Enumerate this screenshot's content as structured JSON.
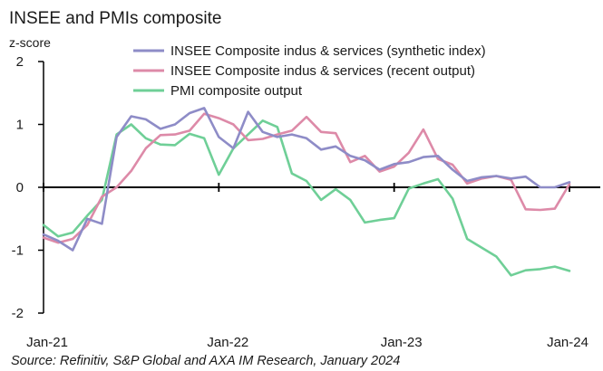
{
  "chart_data": {
    "type": "line",
    "title": "INSEE and PMIs composite",
    "ylabel": "z-score",
    "xlabel": "",
    "ylim": [
      -2,
      2
    ],
    "yticks": [
      2,
      1,
      0,
      -1,
      -2
    ],
    "xtick_labels": [
      "Jan-21",
      "Jan-22",
      "Jan-23",
      "Jan-24"
    ],
    "legend_position": "top-right",
    "source": "Source: Refinitiv, S&P Global and AXA IM Research, January 2024",
    "x": [
      "Jan-21",
      "Feb-21",
      "Mar-21",
      "Apr-21",
      "May-21",
      "Jun-21",
      "Jul-21",
      "Aug-21",
      "Sep-21",
      "Oct-21",
      "Nov-21",
      "Dec-21",
      "Jan-22",
      "Feb-22",
      "Mar-22",
      "Apr-22",
      "May-22",
      "Jun-22",
      "Jul-22",
      "Aug-22",
      "Sep-22",
      "Oct-22",
      "Nov-22",
      "Dec-22",
      "Jan-23",
      "Feb-23",
      "Mar-23",
      "Apr-23",
      "May-23",
      "Jun-23",
      "Jul-23",
      "Aug-23",
      "Sep-23",
      "Oct-23",
      "Nov-23",
      "Dec-23",
      "Jan-24"
    ],
    "series": [
      {
        "name": "INSEE Composite indus & services (synthetic index)",
        "color": "#8e8cc7",
        "values": [
          -0.75,
          -0.85,
          -1.0,
          -0.5,
          -0.58,
          0.8,
          1.13,
          1.08,
          0.93,
          1.0,
          1.18,
          1.26,
          0.8,
          0.62,
          1.2,
          0.88,
          0.8,
          0.84,
          0.78,
          0.6,
          0.65,
          0.5,
          0.43,
          0.28,
          0.37,
          0.4,
          0.48,
          0.5,
          0.28,
          0.1,
          0.16,
          0.18,
          0.14,
          0.17,
          0.0,
          0.0,
          0.08
        ]
      },
      {
        "name": "INSEE Composite indus & services (recent output)",
        "color": "#dd8aa8",
        "values": [
          -0.8,
          -0.88,
          -0.82,
          -0.6,
          -0.15,
          0.0,
          0.26,
          0.62,
          0.83,
          0.84,
          0.9,
          1.17,
          1.1,
          1.0,
          0.75,
          0.77,
          0.84,
          0.9,
          1.12,
          0.88,
          0.86,
          0.4,
          0.5,
          0.25,
          0.33,
          0.55,
          0.92,
          0.45,
          0.36,
          0.06,
          0.14,
          0.18,
          0.12,
          -0.35,
          -0.36,
          -0.34,
          0.05
        ]
      },
      {
        "name": "PMI composite output",
        "color": "#6fcf97",
        "values": [
          -0.6,
          -0.78,
          -0.72,
          -0.45,
          -0.2,
          0.84,
          1.0,
          0.78,
          0.68,
          0.67,
          0.85,
          0.78,
          0.2,
          0.62,
          0.84,
          1.06,
          0.96,
          0.22,
          0.1,
          -0.2,
          -0.03,
          -0.2,
          -0.56,
          -0.52,
          -0.49,
          -0.02,
          0.06,
          0.13,
          -0.18,
          -0.82,
          -0.96,
          -1.1,
          -1.4,
          -1.32,
          -1.3,
          -1.26,
          -1.33
        ]
      }
    ]
  }
}
